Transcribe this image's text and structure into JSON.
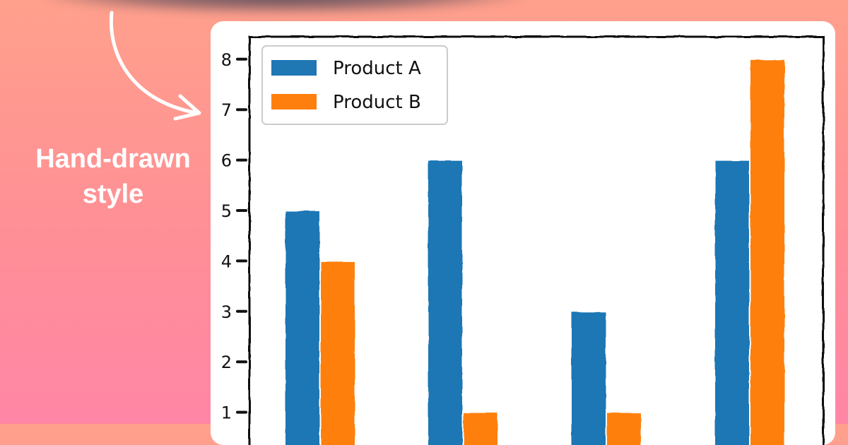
{
  "annotation": {
    "caption_line1": "Hand-drawn",
    "caption_line2": "style",
    "arrow_icon": "curved-arrow-icon"
  },
  "colors": {
    "product_a": "#1f77b4",
    "product_b": "#ff7f0e",
    "card": "#ffffff"
  },
  "chart_data": {
    "type": "bar",
    "categories": [
      "",
      "",
      "",
      ""
    ],
    "series": [
      {
        "name": "Product A",
        "values": [
          5,
          6,
          3,
          6
        ]
      },
      {
        "name": "Product B",
        "values": [
          4,
          1,
          1,
          8
        ]
      }
    ],
    "yticks": [
      1,
      2,
      3,
      4,
      5,
      6,
      7,
      8
    ],
    "ylim": [
      0,
      8.4
    ],
    "grid": false,
    "legend": "top-left",
    "style": "hand-drawn (xkcd)"
  }
}
